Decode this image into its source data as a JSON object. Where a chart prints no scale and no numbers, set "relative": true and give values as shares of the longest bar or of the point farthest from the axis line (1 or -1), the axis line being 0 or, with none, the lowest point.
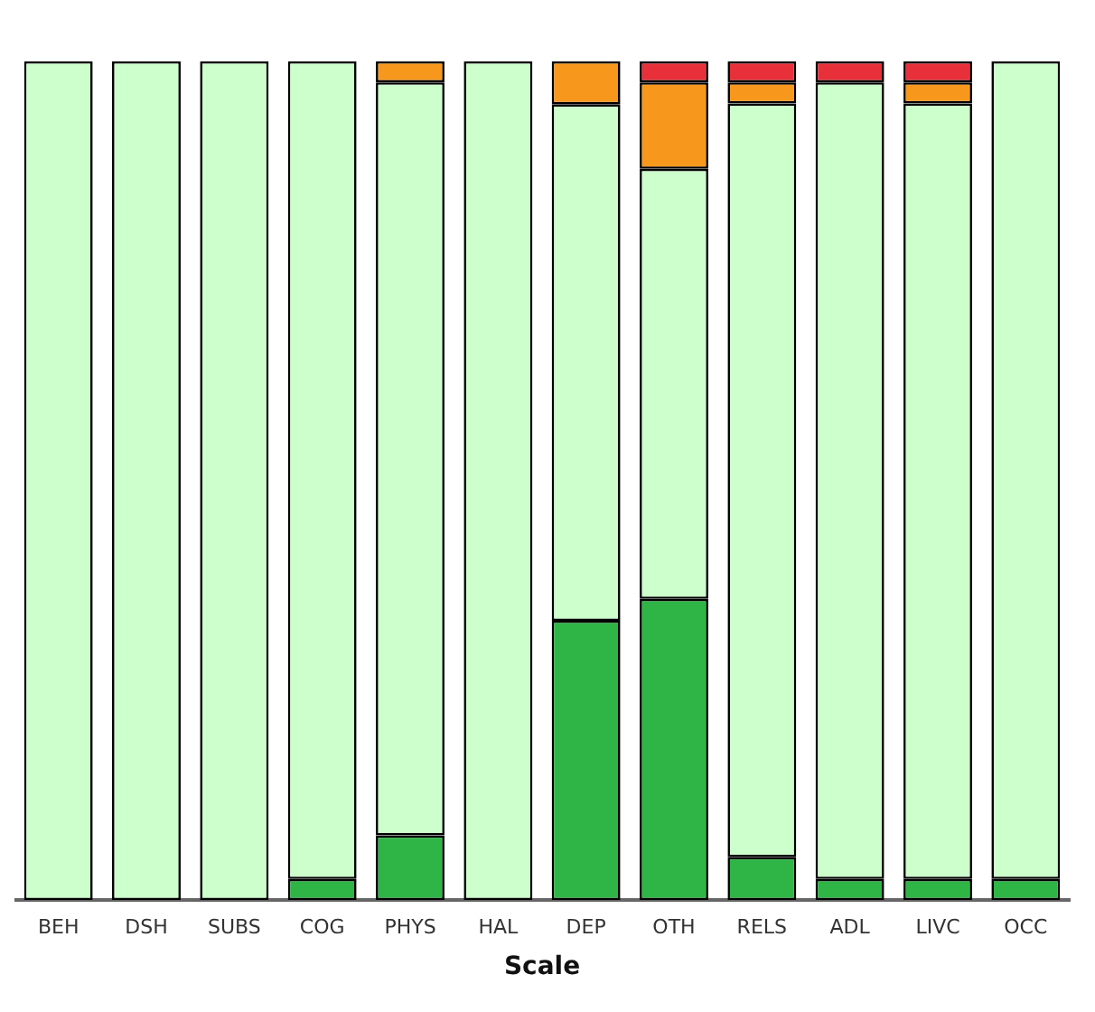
{
  "chart_data": {
    "type": "bar",
    "xlabel": "Scale",
    "relative": true,
    "stacked": true,
    "legend": false,
    "grid": false,
    "categories": [
      "BEH",
      "DSH",
      "SUBS",
      "COG",
      "PHYS",
      "HAL",
      "DEP",
      "OTH",
      "RELS",
      "ADL",
      "LIVC",
      "OCC"
    ],
    "series": [
      {
        "color": "#2eb545",
        "values": [
          0,
          0,
          0,
          0.025,
          0.077,
          0,
          0.333,
          0.359,
          0.051,
          0.025,
          0.025,
          0.025
        ]
      },
      {
        "color": "#ccffcc",
        "values": [
          1,
          1,
          1,
          0.975,
          0.898,
          1,
          0.616,
          0.513,
          0.899,
          0.95,
          0.925,
          0.975
        ]
      },
      {
        "color": "#f7981d",
        "values": [
          0,
          0,
          0,
          0,
          0.025,
          0,
          0.051,
          0.103,
          0.025,
          0,
          0.025,
          0
        ]
      },
      {
        "color": "#e8303a",
        "values": [
          0,
          0,
          0,
          0,
          0,
          0,
          0,
          0.025,
          0.025,
          0.025,
          0.025,
          0
        ]
      }
    ]
  }
}
